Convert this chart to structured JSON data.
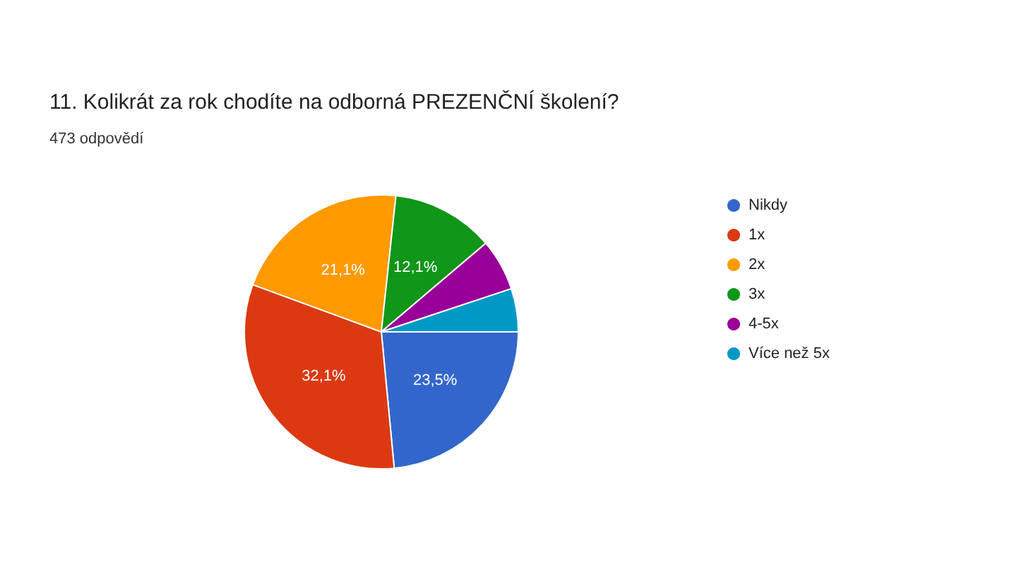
{
  "chart_data": {
    "type": "pie",
    "title": "11. Kolikrát za rok chodíte na odborná PREZENČNÍ školení?",
    "subtitle": "473 odpovědí",
    "categories": [
      "Nikdy",
      "1x",
      "2x",
      "3x",
      "4-5x",
      "Více než 5x"
    ],
    "values": [
      23.5,
      32.1,
      21.1,
      12.1,
      6.1,
      5.1
    ],
    "colors": [
      "#3366cc",
      "#dc3912",
      "#ff9900",
      "#109618",
      "#990099",
      "#0099c6"
    ],
    "value_labels": [
      "23,5%",
      "32,1%",
      "21,1%",
      "12,1%",
      null,
      null
    ],
    "legend": "right"
  }
}
